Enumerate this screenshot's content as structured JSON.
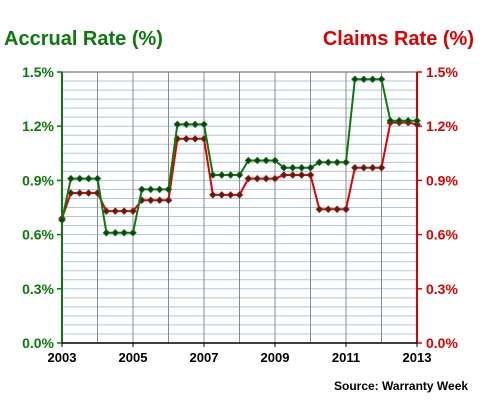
{
  "chart_data": {
    "type": "line",
    "left_title": "Accrual Rate (%)",
    "right_title": "Claims Rate (%)",
    "source": "Source: Warranty Week",
    "y_ticks": [
      "0.0%",
      "0.3%",
      "0.6%",
      "0.9%",
      "1.2%",
      "1.5%"
    ],
    "y_values": [
      0,
      0.3,
      0.6,
      0.9,
      1.2,
      1.5
    ],
    "ylim": [
      0,
      1.5
    ],
    "xlim": [
      2003,
      2013
    ],
    "x_ticks": [
      "2003",
      "2005",
      "2007",
      "2009",
      "2011",
      "2013"
    ],
    "x_tick_values": [
      2003,
      2005,
      2007,
      2009,
      2011,
      2013
    ],
    "grid": true,
    "colors": {
      "accrual": "#0a7a0a",
      "claims": "#e00000",
      "grid": "#a8c8e8",
      "axis_left": "#0a7a0a",
      "axis_right": "#e00000"
    },
    "series": [
      {
        "name": "Accrual Rate",
        "axis": "left",
        "x": [
          2003.0,
          2003.25,
          2003.5,
          2003.75,
          2004.0,
          2004.25,
          2004.5,
          2004.75,
          2005.0,
          2005.25,
          2005.5,
          2005.75,
          2006.0,
          2006.25,
          2006.5,
          2006.75,
          2007.0,
          2007.25,
          2007.5,
          2007.75,
          2008.0,
          2008.25,
          2008.5,
          2008.75,
          2009.0,
          2009.25,
          2009.5,
          2009.75,
          2010.0,
          2010.25,
          2010.5,
          2010.75,
          2011.0,
          2011.25,
          2011.5,
          2011.75,
          2012.0,
          2012.25,
          2012.5,
          2012.75,
          2013.0
        ],
        "values": [
          0.68,
          0.91,
          0.91,
          0.91,
          0.91,
          0.61,
          0.61,
          0.61,
          0.61,
          0.85,
          0.85,
          0.85,
          0.85,
          1.21,
          1.21,
          1.21,
          1.21,
          0.93,
          0.93,
          0.93,
          0.93,
          1.01,
          1.01,
          1.01,
          1.01,
          0.97,
          0.97,
          0.97,
          0.97,
          1.0,
          1.0,
          1.0,
          1.0,
          1.46,
          1.46,
          1.46,
          1.46,
          1.23,
          1.23,
          1.23,
          1.23
        ]
      },
      {
        "name": "Claims Rate",
        "axis": "right",
        "x": [
          2003.0,
          2003.25,
          2003.5,
          2003.75,
          2004.0,
          2004.25,
          2004.5,
          2004.75,
          2005.0,
          2005.25,
          2005.5,
          2005.75,
          2006.0,
          2006.25,
          2006.5,
          2006.75,
          2007.0,
          2007.25,
          2007.5,
          2007.75,
          2008.0,
          2008.25,
          2008.5,
          2008.75,
          2009.0,
          2009.25,
          2009.5,
          2009.75,
          2010.0,
          2010.25,
          2010.5,
          2010.75,
          2011.0,
          2011.25,
          2011.5,
          2011.75,
          2012.0,
          2012.25,
          2012.5,
          2012.75,
          2013.0
        ],
        "values": [
          0.69,
          0.83,
          0.83,
          0.83,
          0.83,
          0.73,
          0.73,
          0.73,
          0.73,
          0.79,
          0.79,
          0.79,
          0.79,
          1.13,
          1.13,
          1.13,
          1.13,
          0.82,
          0.82,
          0.82,
          0.82,
          0.91,
          0.91,
          0.91,
          0.91,
          0.93,
          0.93,
          0.93,
          0.93,
          0.74,
          0.74,
          0.74,
          0.74,
          0.97,
          0.97,
          0.97,
          0.97,
          1.22,
          1.22,
          1.22,
          1.21
        ]
      }
    ]
  }
}
